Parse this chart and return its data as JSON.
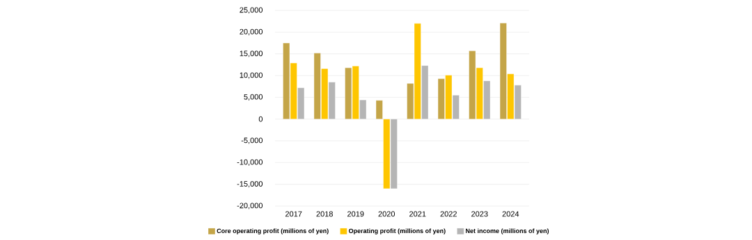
{
  "chart_data": {
    "type": "bar",
    "categories": [
      "2017",
      "2018",
      "2019",
      "2020",
      "2021",
      "2022",
      "2023",
      "2024"
    ],
    "series": [
      {
        "name": "Core operating profit (millions of yen)",
        "color": "#c4a548",
        "values": [
          17500,
          15200,
          11800,
          4300,
          8200,
          9300,
          15700,
          22100
        ]
      },
      {
        "name": "Operating profit (millions of yen)",
        "color": "#fec601",
        "values": [
          12900,
          11600,
          12200,
          -16000,
          22000,
          10100,
          11800,
          10400
        ]
      },
      {
        "name": "Net income (millions of yen)",
        "color": "#b5b5b5",
        "values": [
          7200,
          8500,
          4400,
          -16000,
          12300,
          5500,
          8800,
          7800
        ]
      }
    ],
    "ylim": [
      -20000,
      25000
    ],
    "yticks": [
      {
        "value": -20000,
        "label": "-20,000"
      },
      {
        "value": -15000,
        "label": "-15,000"
      },
      {
        "value": -10000,
        "label": "-10,000"
      },
      {
        "value": -5000,
        "label": "-5,000"
      },
      0,
      {
        "value": 5000,
        "label": "5,000"
      },
      {
        "value": 10000,
        "label": "10,000"
      },
      {
        "value": 15000,
        "label": "15,000"
      },
      {
        "value": 20000,
        "label": "20,000"
      },
      {
        "value": 25000,
        "label": "25,000"
      }
    ],
    "grid": "y",
    "legend": "bottom"
  }
}
